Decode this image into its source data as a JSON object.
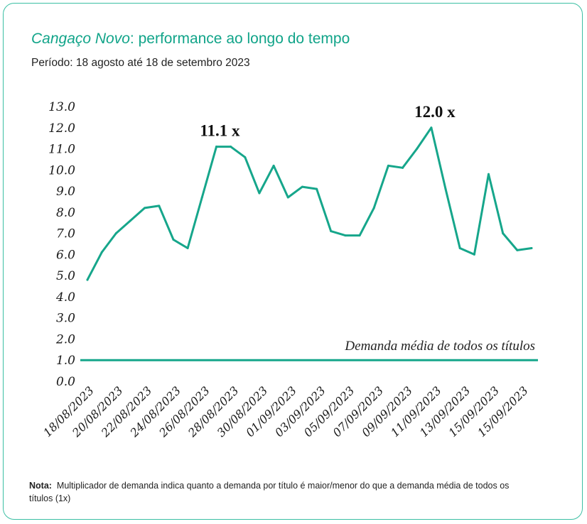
{
  "header": {
    "title_brand": "Cangaço Novo",
    "title_rest": ": performance ao longo do tempo",
    "subtitle": "Período: 18 agosto até 18 de setembro 2023"
  },
  "note": {
    "label": "Nota:",
    "text": "Multiplicador de demanda indica quanto a demanda por título é maior/menor do que a demanda média de todos os títulos (1x)"
  },
  "colors": {
    "accent": "#11a489",
    "line": "#16a68b",
    "border": "#3bbfa3"
  },
  "chart_data": {
    "type": "line",
    "title": "Cangaço Novo: performance ao longo do tempo",
    "xlabel": "",
    "ylabel": "",
    "ylim": [
      0,
      13
    ],
    "y_ticks": [
      "13.0",
      "12.0",
      "11.0",
      "10.0",
      "9.0",
      "8.0",
      "7.0",
      "6.0",
      "5.0",
      "4.0",
      "3.0",
      "2.0",
      "1.0",
      "0.0"
    ],
    "x_tick_labels": [
      "18/08/2023",
      "20/08/2023",
      "22/08/2023",
      "24/08/2023",
      "26/08/2023",
      "28/08/2023",
      "30/08/2023",
      "01/09/2023",
      "03/09/2023",
      "05/09/2023",
      "07/09/2023",
      "09/09/2023",
      "11/09/2023",
      "13/09/2023",
      "15/09/2023",
      "15/09/2023"
    ],
    "series": [
      {
        "name": "Cangaço Novo",
        "values": [
          4.8,
          6.1,
          7.0,
          7.6,
          8.2,
          8.3,
          6.7,
          6.3,
          8.7,
          11.1,
          11.1,
          10.6,
          8.9,
          10.2,
          8.7,
          9.2,
          9.1,
          7.1,
          6.9,
          6.9,
          8.2,
          10.2,
          10.1,
          11.0,
          12.0,
          9.1,
          6.3,
          6.0,
          9.8,
          7.0,
          6.2,
          6.3
        ]
      }
    ],
    "reference_line": {
      "value": 1.0,
      "label": "Demanda média de todos os títulos"
    },
    "annotations": [
      {
        "index": 9,
        "text": "11.1 x"
      },
      {
        "index": 24,
        "text": "12.0 x"
      }
    ]
  }
}
